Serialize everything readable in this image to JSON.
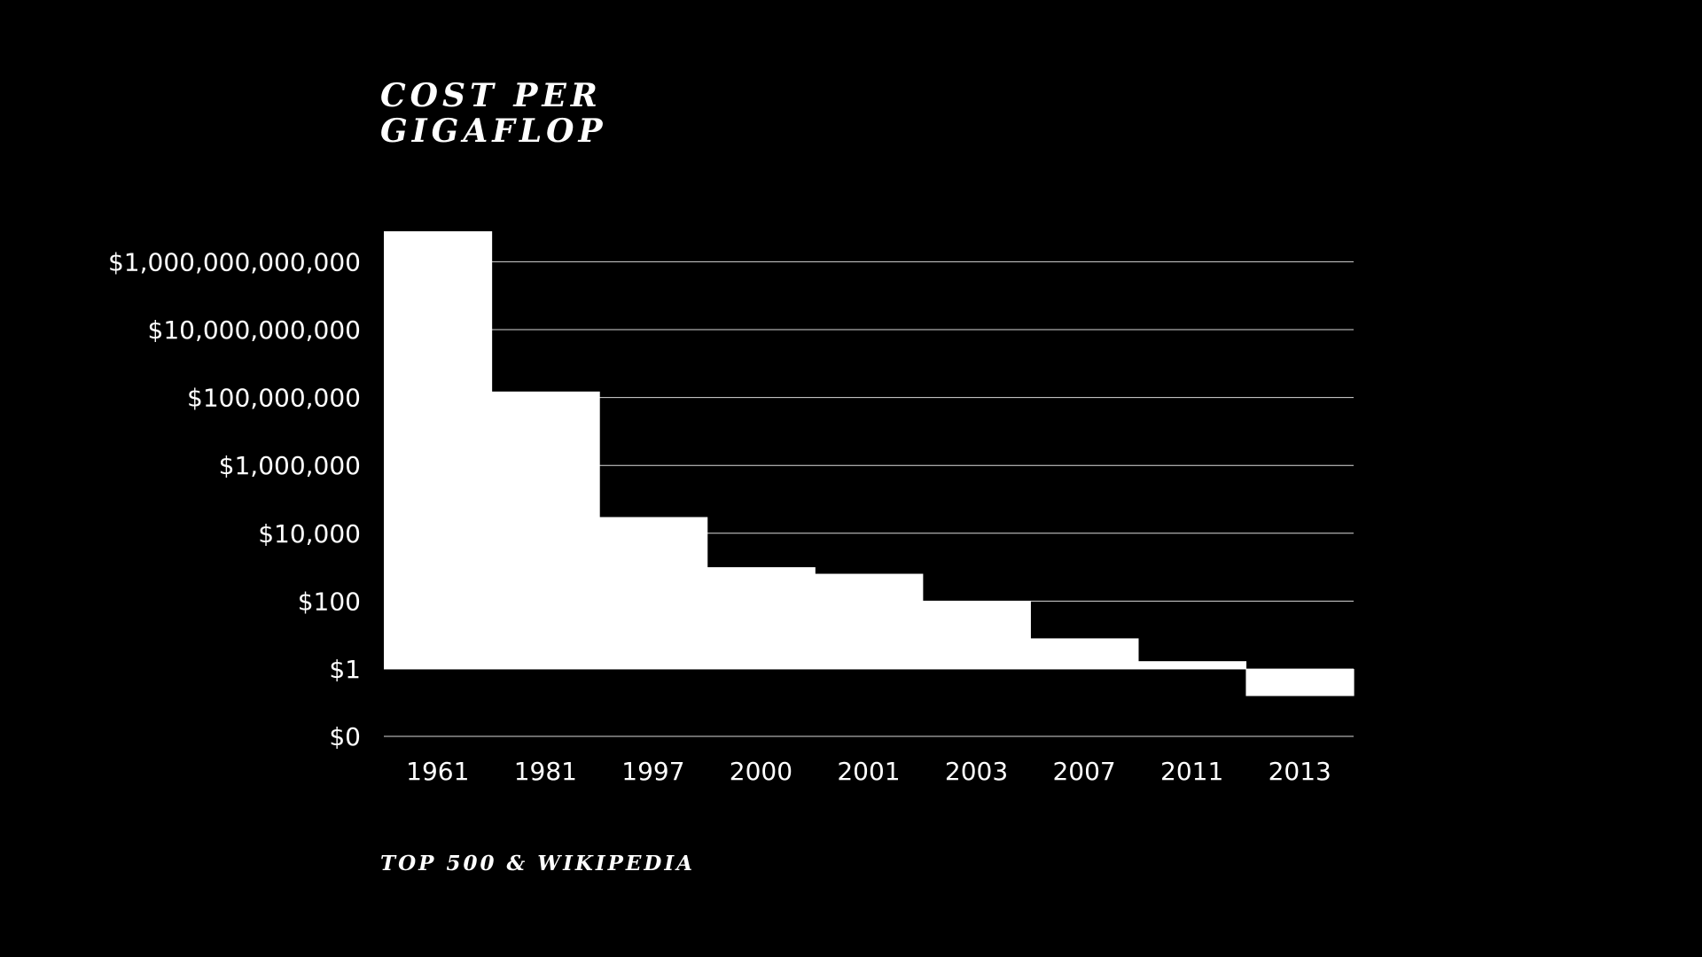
{
  "header": {
    "title_line1": "COST PER",
    "title_line2": "GIGAFLOP"
  },
  "footer": {
    "source": "TOP 500 & WIKIPEDIA"
  },
  "colors": {
    "background": "#000000",
    "bars": "#ffffff",
    "gridlines": "#ffffff",
    "text": "#ffffff"
  },
  "chart_data": {
    "type": "bar",
    "title": "COST PER GIGAFLOP",
    "source": "TOP 500 & WIKIPEDIA",
    "categories": [
      "1961",
      "1981",
      "1997",
      "2000",
      "2001",
      "2003",
      "2007",
      "2011",
      "2013"
    ],
    "values": [
      8000000000000,
      150000000,
      30000,
      1000,
      640,
      100,
      8,
      1.7,
      0.16
    ],
    "y_scale": "log",
    "y_ticks": [
      {
        "value": 0,
        "label": "$0"
      },
      {
        "value": 1,
        "label": "$1"
      },
      {
        "value": 100,
        "label": "$100"
      },
      {
        "value": 10000,
        "label": "$10,000"
      },
      {
        "value": 1000000,
        "label": "$1,000,000"
      },
      {
        "value": 100000000,
        "label": "$100,000,000"
      },
      {
        "value": 10000000000,
        "label": "$10,000,000,000"
      },
      {
        "value": 1000000000000,
        "label": "$1,000,000,000,000"
      }
    ],
    "baseline": 1,
    "grid": true,
    "legend": "none",
    "xlabel": "",
    "ylabel": ""
  }
}
